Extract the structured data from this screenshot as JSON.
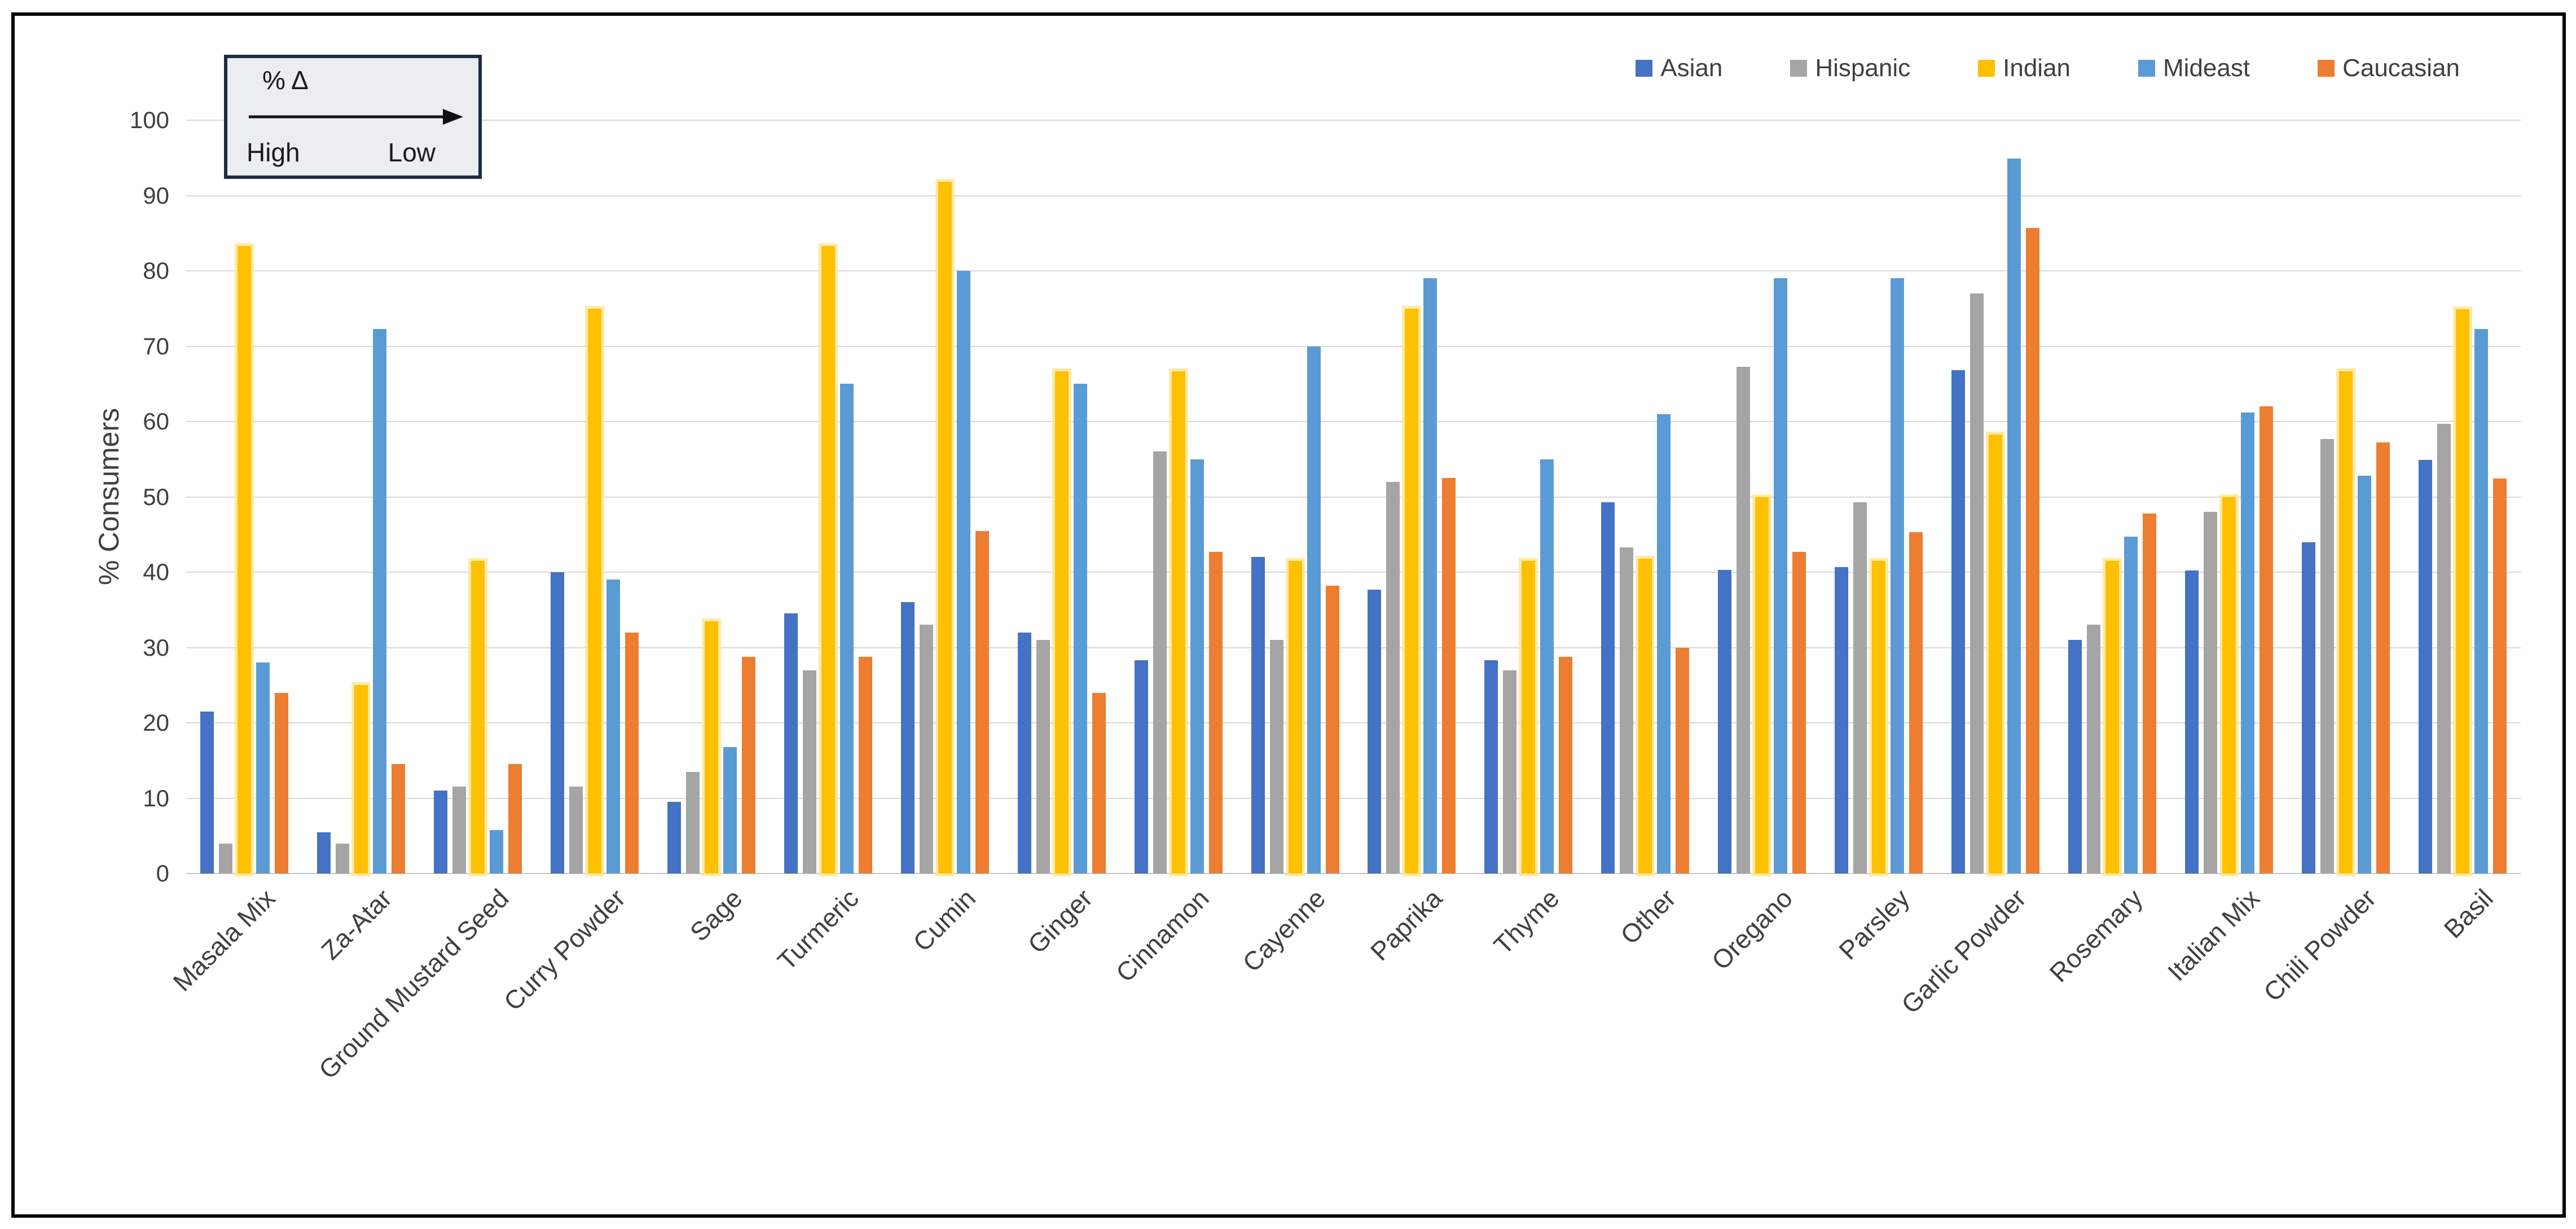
{
  "annotation": {
    "title": "% Δ",
    "left_label": "High",
    "right_label": "Low"
  },
  "chart_data": {
    "type": "bar",
    "title": "",
    "xlabel": "",
    "ylabel": "% Consumers",
    "ylim": [
      0,
      100
    ],
    "ytick_step": 10,
    "grid": true,
    "legend_position": "top-right",
    "categories": [
      "Masala Mix",
      "Za-Atar",
      "Ground Mustard Seed",
      "Curry Powder",
      "Sage",
      "Turmeric",
      "Cumin",
      "Ginger",
      "Cinnamon",
      "Cayenne",
      "Paprika",
      "Thyme",
      "Other",
      "Oregano",
      "Parsley",
      "Garlic Powder",
      "Rosemary",
      "Italian Mix",
      "Chili Powder",
      "Basil"
    ],
    "series": [
      {
        "name": "Asian",
        "color": "#4472C4",
        "values": [
          21.5,
          5.5,
          11,
          40,
          9.5,
          34.5,
          36,
          32,
          28.3,
          42,
          37.7,
          28.3,
          49.3,
          40.3,
          40.7,
          66.8,
          31,
          40.2,
          44,
          54.9
        ]
      },
      {
        "name": "Hispanic",
        "color": "#A5A5A5",
        "values": [
          4,
          4,
          11.5,
          11.5,
          13.5,
          27,
          33,
          31,
          56,
          31,
          52,
          27,
          43.3,
          67.3,
          49.3,
          77,
          33,
          48,
          57.7,
          59.7
        ]
      },
      {
        "name": "Indian",
        "color": "#FFC000",
        "values": [
          83.3,
          25,
          41.5,
          75,
          33.5,
          83.3,
          91.8,
          66.7,
          66.7,
          41.5,
          75,
          41.5,
          41.8,
          50,
          41.5,
          58.3,
          41.5,
          50,
          66.7,
          74.9
        ]
      },
      {
        "name": "Mideast",
        "color": "#5B9BD5",
        "values": [
          28,
          72.3,
          5.8,
          39,
          16.8,
          65,
          80,
          65,
          55,
          70,
          79,
          55,
          61,
          79,
          79,
          94.9,
          44.7,
          61.2,
          52.8,
          72.3
        ]
      },
      {
        "name": "Caucasian",
        "color": "#ED7D31",
        "values": [
          24,
          14.5,
          14.5,
          32,
          28.8,
          28.8,
          45.5,
          24,
          42.7,
          38.2,
          52.5,
          28.8,
          30,
          42.7,
          45.3,
          85.7,
          47.8,
          62,
          57.2,
          52.4
        ]
      }
    ]
  }
}
